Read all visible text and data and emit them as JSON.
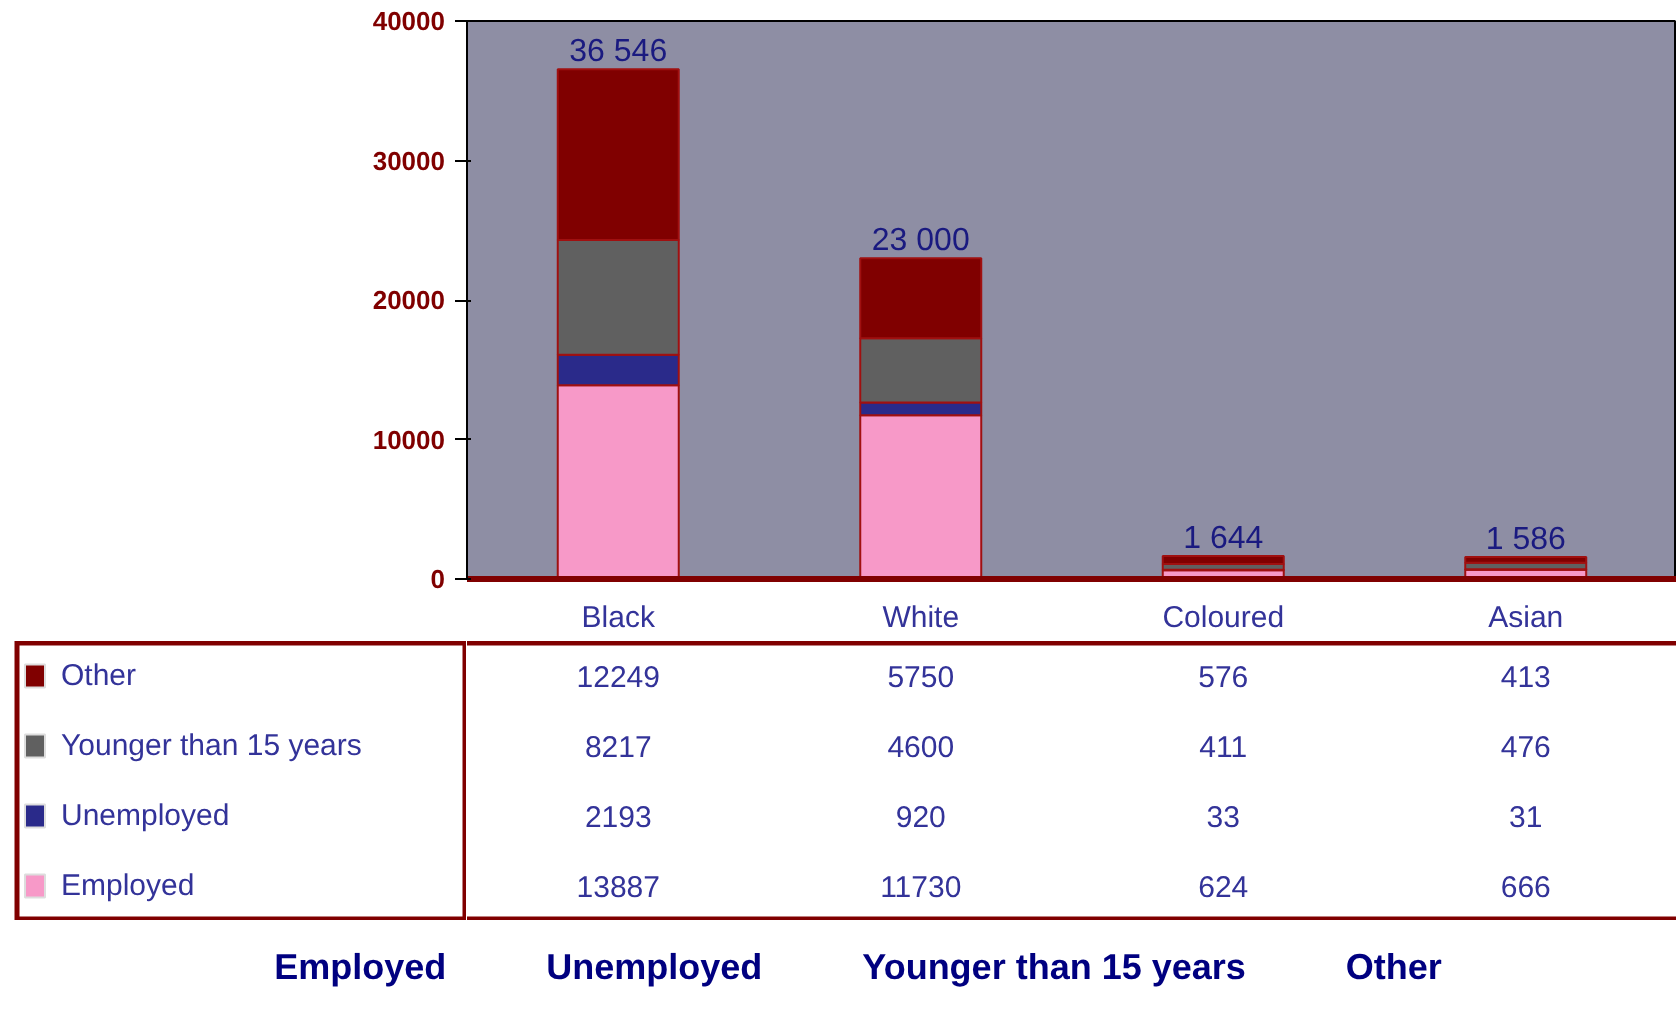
{
  "chart_data": {
    "type": "bar",
    "stacked": true,
    "categories": [
      "Black",
      "White",
      "Coloured",
      "Asian"
    ],
    "series": [
      {
        "name": "Employed",
        "color": "#f799c8",
        "values": [
          13887,
          11730,
          624,
          666
        ]
      },
      {
        "name": "Unemployed",
        "color": "#2a2a8a",
        "values": [
          2193,
          920,
          33,
          31
        ]
      },
      {
        "name": "Younger than 15 years",
        "color": "#606060",
        "values": [
          8217,
          4600,
          411,
          476
        ]
      },
      {
        "name": "Other",
        "color": "#800000",
        "values": [
          12249,
          5750,
          576,
          413
        ]
      }
    ],
    "totals": [
      "36 546",
      "23 000",
      "1 644",
      "1 586"
    ],
    "data_labels": true,
    "ylim": [
      0,
      40000
    ],
    "yticks": [
      0,
      10000,
      20000,
      30000,
      40000
    ],
    "grid": false,
    "legend": "bottom"
  }
}
